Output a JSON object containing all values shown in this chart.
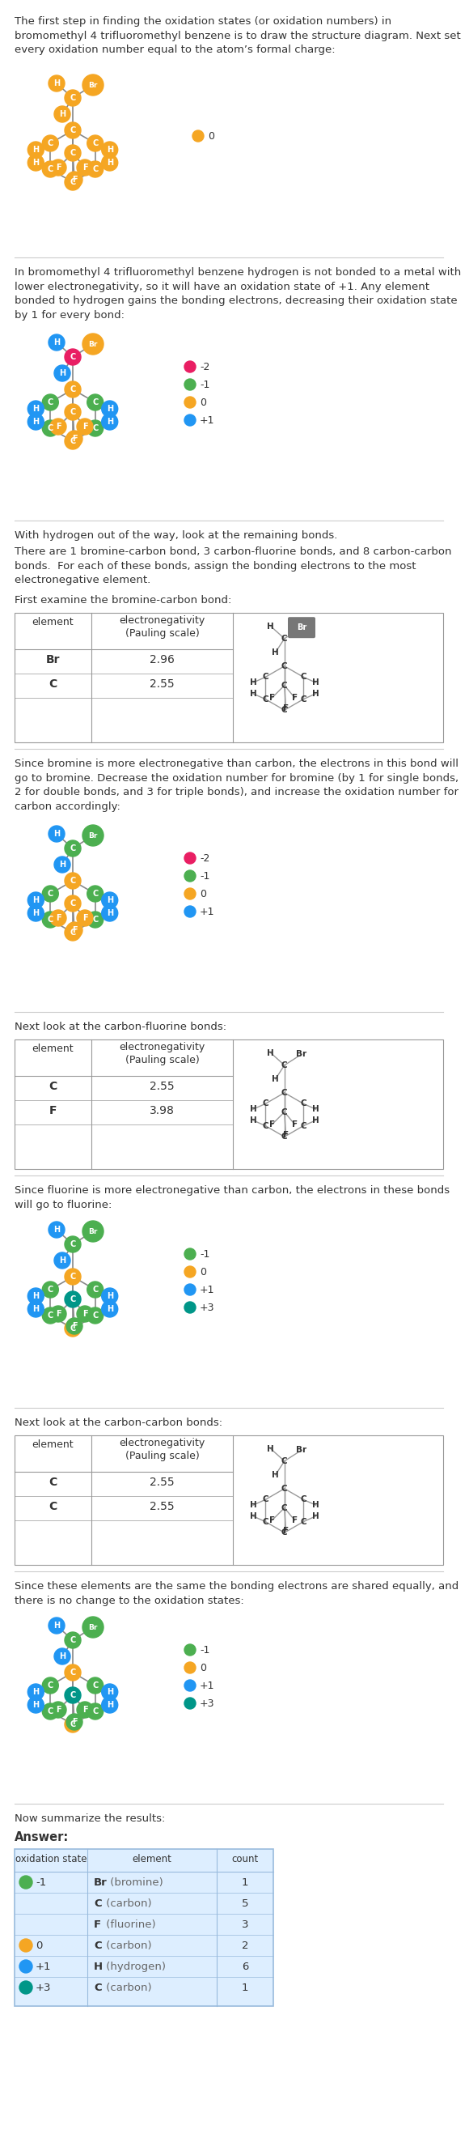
{
  "bg_color": "#ffffff",
  "text_color": "#333333",
  "colors": {
    "orange": "#f5a623",
    "green": "#4caf50",
    "blue": "#2196f3",
    "pink": "#e91e63",
    "teal": "#009688",
    "gray": "#9e9e9e"
  },
  "paragraphs": {
    "p0": "The first step in finding the oxidation states (or oxidation numbers) in\nbromomethyl 4 trifluoromethyl benzene is to draw the structure diagram. Next set\nevery oxidation number equal to the atom’s formal charge:",
    "p1": "In bromomethyl 4 trifluoromethyl benzene hydrogen is not bonded to a metal with\nlower electronegativity, so it will have an oxidation state of +1. Any element\nbonded to hydrogen gains the bonding electrons, decreasing their oxidation state\nby 1 for every bond:",
    "p2a": "With hydrogen out of the way, look at the remaining bonds.",
    "p2b": "There are 1 bromine-carbon bond, 3 carbon-fluorine bonds, and 8 carbon-carbon\nbonds.  For each of these bonds, assign the bonding electrons to the most\nelectronegative element.",
    "p3": "First examine the bromine-carbon bond:",
    "p3b": "Since bromine is more electronegative than carbon, the electrons in this bond will\ngo to bromine. Decrease the oxidation number for bromine (by 1 for single bonds,\n2 for double bonds, and 3 for triple bonds), and increase the oxidation number for\ncarbon accordingly:",
    "p4": "Next look at the carbon-fluorine bonds:",
    "p4b": "Since fluorine is more electronegative than carbon, the electrons in these bonds\nwill go to fluorine:",
    "p5": "Next look at the carbon-carbon bonds:",
    "p5b": "Since these elements are the same the bonding electrons are shared equally, and\nthere is no change to the oxidation states:",
    "p6": "Now summarize the results:"
  },
  "legends": {
    "d0": [
      {
        "color": "#f5a623",
        "label": "0"
      }
    ],
    "d1": [
      {
        "color": "#e91e63",
        "label": "-2"
      },
      {
        "color": "#4caf50",
        "label": "-1"
      },
      {
        "color": "#f5a623",
        "label": "0"
      },
      {
        "color": "#2196f3",
        "label": "+1"
      }
    ],
    "d2": [
      {
        "color": "#e91e63",
        "label": "-2"
      },
      {
        "color": "#4caf50",
        "label": "-1"
      },
      {
        "color": "#f5a623",
        "label": "0"
      },
      {
        "color": "#2196f3",
        "label": "+1"
      }
    ],
    "d3": [
      {
        "color": "#4caf50",
        "label": "-1"
      },
      {
        "color": "#f5a623",
        "label": "0"
      },
      {
        "color": "#2196f3",
        "label": "+1"
      },
      {
        "color": "#009688",
        "label": "+3"
      }
    ],
    "d4": [
      {
        "color": "#4caf50",
        "label": "-1"
      },
      {
        "color": "#f5a623",
        "label": "0"
      },
      {
        "color": "#2196f3",
        "label": "+1"
      },
      {
        "color": "#009688",
        "label": "+3"
      }
    ],
    "d5": [
      {
        "color": "#4caf50",
        "label": "-1"
      },
      {
        "color": "#f5a623",
        "label": "0"
      },
      {
        "color": "#2196f3",
        "label": "+1"
      },
      {
        "color": "#009688",
        "label": "+3"
      }
    ]
  },
  "en_tables": [
    {
      "rows": [
        [
          "Br",
          "2.96"
        ],
        [
          "C",
          "2.55"
        ]
      ]
    },
    {
      "rows": [
        [
          "C",
          "2.55"
        ],
        [
          "F",
          "3.98"
        ]
      ]
    },
    {
      "rows": [
        [
          "C",
          "2.55"
        ],
        [
          "C",
          "2.55"
        ]
      ]
    }
  ],
  "summary_rows": [
    {
      "ox": "-1",
      "sym": "Br",
      "name": "bromine",
      "count": "1",
      "color": "#4caf50"
    },
    {
      "ox": "",
      "sym": "C",
      "name": "carbon",
      "count": "5",
      "color": "#4caf50"
    },
    {
      "ox": "",
      "sym": "F",
      "name": "fluorine",
      "count": "3",
      "color": "#4caf50"
    },
    {
      "ox": "0",
      "sym": "C",
      "name": "carbon",
      "count": "2",
      "color": "#f5a623"
    },
    {
      "ox": "+1",
      "sym": "H",
      "name": "hydrogen",
      "count": "6",
      "color": "#2196f3"
    },
    {
      "ox": "+3",
      "sym": "C",
      "name": "carbon",
      "count": "1",
      "color": "#009688"
    }
  ]
}
